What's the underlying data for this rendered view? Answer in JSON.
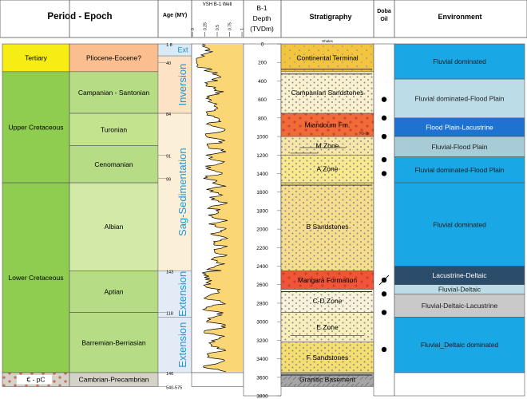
{
  "headers": {
    "period_epoch": "Period - Epoch",
    "age": "Age (MY)",
    "vsh": "VSH B-1 Well",
    "vsh_ticks": [
      "0",
      "0.25",
      "0.5",
      "0.75",
      "1"
    ],
    "depth_line1": "B-1",
    "depth_line2": "Depth",
    "depth_line3": "(TVDm)",
    "stratigraphy": "Stratigraphy",
    "doba_line1": "Doba",
    "doba_line2": "Oil",
    "environment": "Environment"
  },
  "periods": [
    {
      "label": "Tertiary",
      "color": "#f5ed13",
      "top": 0,
      "bottom": 300
    },
    {
      "label": "Upper Cretaceous",
      "color": "#8ecd4f",
      "top": 300,
      "bottom": 1500
    },
    {
      "label": "Lower Cretaceous",
      "color": "#8ecd4f",
      "top": 1500,
      "bottom": 3550
    },
    {
      "label": "€ - pC",
      "color": "#d5d3c7",
      "top": 3550,
      "bottom": 3700
    }
  ],
  "epochs": [
    {
      "label": "Pliocene-Eocene?",
      "color": "#fbbf8f",
      "top": 0,
      "bottom": 300
    },
    {
      "label": "Campanian - Santonian",
      "color": "#b6dd86",
      "top": 300,
      "bottom": 750
    },
    {
      "label": "Turonian",
      "color": "#c4e38f",
      "top": 750,
      "bottom": 1100
    },
    {
      "label": "Cenomanian",
      "color": "#b6dd86",
      "top": 1100,
      "bottom": 1500
    },
    {
      "label": "Albian",
      "color": "#d3e9a8",
      "top": 1500,
      "bottom": 2450
    },
    {
      "label": "Aptian",
      "color": "#b6dd86",
      "top": 2450,
      "bottom": 2900
    },
    {
      "label": "Barremian-Berriasian",
      "color": "#b6dd86",
      "top": 2900,
      "bottom": 3550
    },
    {
      "label": "Cambrian-Precambrian",
      "color": "#d5d3c7",
      "top": 3550,
      "bottom": 3700
    }
  ],
  "ages": [
    {
      "label": "1.8",
      "depth": 0
    },
    {
      "label": "40",
      "depth": 200
    },
    {
      "label": "84",
      "depth": 750
    },
    {
      "label": "91",
      "depth": 1200
    },
    {
      "label": "99",
      "depth": 1450
    },
    {
      "label": "143",
      "depth": 2450
    },
    {
      "label": "118",
      "depth": 2900
    },
    {
      "label": "146",
      "depth": 3550
    },
    {
      "label": "540-575",
      "depth": 3700
    }
  ],
  "tectonics": [
    {
      "label": "Ext",
      "color": "#d8eaf6",
      "text_color": "#1f8ac8",
      "top": 0,
      "bottom": 130
    },
    {
      "label": "Inversion",
      "color": "#fde2c6",
      "text_color": "#2196d3",
      "top": 130,
      "bottom": 750
    },
    {
      "label": "Sag-Sedimentation",
      "color": "#fcefd8",
      "text_color": "#2196d3",
      "top": 750,
      "bottom": 2450
    },
    {
      "label": "Extension",
      "color": "#e3ecf6",
      "text_color": "#2196d3",
      "top": 2450,
      "bottom": 2950
    },
    {
      "label": "Extension",
      "color": "#e3ecf6",
      "text_color": "#2196d3",
      "top": 2950,
      "bottom": 3550
    }
  ],
  "depth_axis": {
    "ticks": [
      0,
      200,
      400,
      600,
      800,
      1000,
      1200,
      1400,
      1600,
      1800,
      2000,
      2200,
      2400,
      2600,
      2800,
      3000,
      3200,
      3400,
      3600,
      3800
    ],
    "min": 0,
    "max": 3800
  },
  "stratigraphy": [
    {
      "label": "Continental Terminal",
      "color": "#f2c53d",
      "top": 0,
      "bottom": 300
    },
    {
      "label": "Campanian Sandstones",
      "color": "#f8f0cf",
      "top": 300,
      "bottom": 750
    },
    {
      "label": "Miandoum Fm.",
      "color": "#f06a3a",
      "top": 750,
      "bottom": 1000
    },
    {
      "label": "M Zone",
      "color": "#f7e6a8",
      "top": 1000,
      "bottom": 1200
    },
    {
      "label": "A Zone",
      "color": "#f8e88e",
      "top": 1200,
      "bottom": 1500
    },
    {
      "label": "B Sandstones",
      "color": "#f6dd8e",
      "top": 1500,
      "bottom": 2450
    },
    {
      "label": "Mangara Formation",
      "color": "#f0553a",
      "top": 2450,
      "bottom": 2650
    },
    {
      "label": "C-D Zone",
      "color": "#f8f2da",
      "top": 2650,
      "bottom": 2900
    },
    {
      "label": "E Zone",
      "color": "#f8eebc",
      "top": 2900,
      "bottom": 3220
    },
    {
      "label": "F Sandstones",
      "color": "#f5de70",
      "top": 3220,
      "bottom": 3550
    },
    {
      "label": "Granitic Basement",
      "color": "#a5a5a5",
      "top": 3550,
      "bottom": 3700
    }
  ],
  "strat_small_labels": [
    "Shales",
    "TG-3b"
  ],
  "doba_oil_depths": [
    600,
    800,
    1000,
    1250,
    1400,
    2700,
    2900,
    3300
  ],
  "oil_strike_depth": 2550,
  "environments": [
    {
      "label": "Fluvial dominated",
      "color": "#19a7e6",
      "top": 0,
      "bottom": 380
    },
    {
      "label": "Fluvial dominated-Flood Plain",
      "color": "#bcdde8",
      "top": 380,
      "bottom": 800
    },
    {
      "label": "Flood Plain-Lacustrine",
      "color": "#1e73d2",
      "top": 800,
      "bottom": 1000
    },
    {
      "label": "Fluvial-Flood Plain",
      "color": "#a7ccd8",
      "top": 1000,
      "bottom": 1220
    },
    {
      "label": "Fluvial dominated-Flood Plain",
      "color": "#19a7e6",
      "top": 1220,
      "bottom": 1500
    },
    {
      "label": "Fluvial dominated",
      "color": "#19a7e6",
      "top": 1500,
      "bottom": 2400
    },
    {
      "label": "Lacustrine-Deltaic",
      "color": "#2c4c6c",
      "top": 2400,
      "bottom": 2600
    },
    {
      "label": "Fluvial-Deltaic",
      "color": "#bcdde8",
      "top": 2600,
      "bottom": 2700
    },
    {
      "label": "Fluvial-Deltaic-Lacustrine",
      "color": "#c9c9c9",
      "top": 2700,
      "bottom": 2950
    },
    {
      "label": "Fluvial_Deltaic dominated",
      "color": "#19a7e6",
      "top": 2950,
      "bottom": 3550
    }
  ],
  "colors": {
    "vsh_fill": "#fbd675",
    "depth_bg": "#ffffff",
    "header_bg": "#ffffff",
    "grid": "#555555",
    "oil_dot": "#000000",
    "shale_line": "#2a2a2a"
  }
}
